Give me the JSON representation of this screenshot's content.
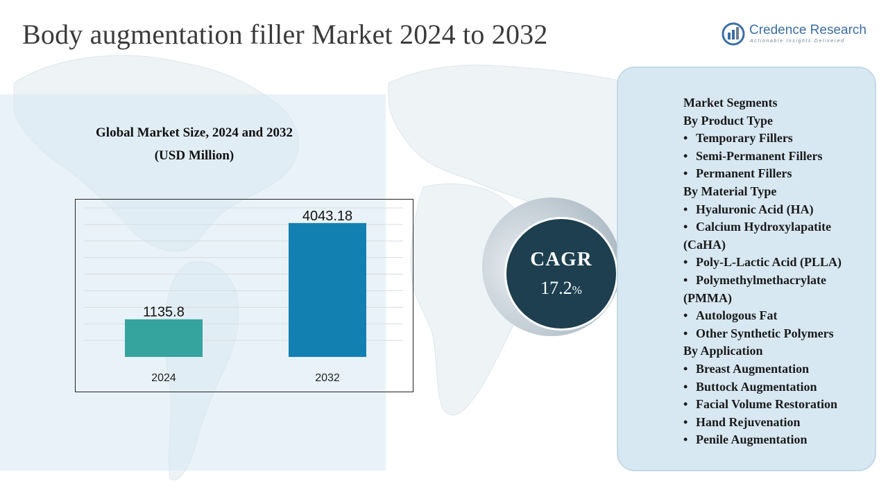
{
  "title": "Body augmentation filler Market 2024 to 2032",
  "logo": {
    "name": "Credence Research",
    "tagline": "Actionable Insights Delivered",
    "color": "#3b6ea5"
  },
  "chart_heading": {
    "line1": "Global Market Size, 2024 and 2032",
    "line2": "(USD Million)"
  },
  "chart_data": {
    "type": "bar",
    "categories": [
      "2024",
      "2032"
    ],
    "values": [
      1135.8,
      4043.18
    ],
    "value_labels": [
      "1135.8",
      "4043.18"
    ],
    "colors": [
      "#35a49f",
      "#1380b2"
    ],
    "ylim": [
      0,
      4500
    ],
    "grid": true,
    "title": "Global Market Size, 2024 and 2032 (USD Million)",
    "xlabel": "",
    "ylabel": ""
  },
  "cagr": {
    "label": "CAGR",
    "value": "17.2",
    "unit": "%"
  },
  "segments": {
    "heading": "Market Segments",
    "groups": [
      {
        "title": "By Product Type",
        "items": [
          "Temporary Fillers",
          "Semi-Permanent Fillers",
          "Permanent Fillers"
        ]
      },
      {
        "title": "By Material Type",
        "items": [
          "Hyaluronic Acid (HA)",
          "Calcium Hydroxylapatite",
          "(CaHA)",
          "Poly-L-Lactic Acid (PLLA)",
          "Polymethylmethacrylate",
          "(PMMA)",
          "Autologous Fat",
          "Other Synthetic Polymers"
        ]
      },
      {
        "title": "By Application",
        "items": [
          "Breast Augmentation",
          "Buttock Augmentation",
          "Facial Volume Restoration",
          "Hand Rejuvenation",
          "Penile Augmentation"
        ]
      }
    ]
  }
}
